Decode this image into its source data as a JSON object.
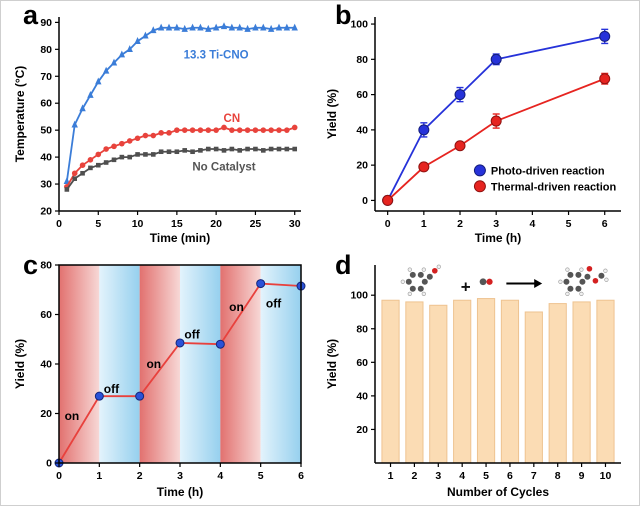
{
  "figure": {
    "background": "#ffffff"
  },
  "panels": {
    "a": {
      "label": "a"
    },
    "b": {
      "label": "b"
    },
    "c": {
      "label": "c"
    },
    "d": {
      "label": "d"
    }
  },
  "chart_data": [
    {
      "panel": "a",
      "type": "line",
      "title": "",
      "xlabel": "Time (min)",
      "ylabel": "Temperature (°C)",
      "xlim": [
        0,
        30.8
      ],
      "ylim": [
        20,
        92
      ],
      "xticks": [
        0,
        5,
        10,
        15,
        20,
        25,
        30
      ],
      "yticks": [
        20,
        30,
        40,
        50,
        60,
        70,
        80,
        90
      ],
      "box": false,
      "series": [
        {
          "name": "13.3 Ti-CNO",
          "color": "#3b7dd8",
          "marker": "triangle",
          "marker_size": 3.2,
          "x": [
            1,
            2,
            3,
            4,
            5,
            6,
            7,
            8,
            9,
            10,
            11,
            12,
            13,
            14,
            15,
            16,
            17,
            18,
            19,
            20,
            21,
            22,
            23,
            24,
            25,
            26,
            27,
            28,
            29,
            30
          ],
          "y": [
            31,
            52,
            58,
            63,
            68,
            72,
            75,
            78,
            80,
            83,
            85,
            87,
            88,
            88,
            88,
            87.5,
            88,
            88,
            87.5,
            88,
            88.5,
            88,
            88,
            87.5,
            88,
            88,
            87.5,
            88,
            88,
            88
          ]
        },
        {
          "name": "CN",
          "color": "#e8433c",
          "marker": "circle",
          "marker_size": 2.8,
          "x": [
            1,
            2,
            3,
            4,
            5,
            6,
            7,
            8,
            9,
            10,
            11,
            12,
            13,
            14,
            15,
            16,
            17,
            18,
            19,
            20,
            21,
            22,
            23,
            24,
            25,
            26,
            27,
            28,
            29,
            30
          ],
          "y": [
            29,
            34,
            37,
            39,
            41,
            43,
            44,
            45,
            46,
            47,
            48,
            48,
            49,
            49,
            50,
            50,
            50,
            50,
            50,
            50,
            51,
            50,
            50,
            50,
            50,
            50,
            50,
            50,
            50,
            51
          ]
        },
        {
          "name": "No Catalyst",
          "color": "#4f4f4f",
          "marker": "square",
          "marker_size": 2.8,
          "x": [
            1,
            2,
            3,
            4,
            5,
            6,
            7,
            8,
            9,
            10,
            11,
            12,
            13,
            14,
            15,
            16,
            17,
            18,
            19,
            20,
            21,
            22,
            23,
            24,
            25,
            26,
            27,
            28,
            29,
            30
          ],
          "y": [
            28,
            32,
            34,
            36,
            37,
            38,
            39,
            40,
            40,
            41,
            41,
            41,
            42,
            42,
            42,
            42.5,
            42,
            42.5,
            43,
            43,
            42.5,
            43,
            42.5,
            43,
            43,
            42.5,
            43,
            43,
            43,
            43
          ]
        }
      ],
      "annotations": [
        {
          "text": "13.3 Ti-CNO",
          "x": 20,
          "y": 78,
          "color": "#3b7dd8",
          "size": 11.5
        },
        {
          "text": "CN",
          "x": 22,
          "y": 54.5,
          "color": "#e8433c",
          "size": 11.5
        },
        {
          "text": "No Catalyst",
          "x": 21,
          "y": 36.5,
          "color": "#555555",
          "size": 11.5
        }
      ]
    },
    {
      "panel": "b",
      "type": "line",
      "title": "",
      "xlabel": "Time (h)",
      "ylabel": "Yield (%)",
      "xlim": [
        -0.35,
        6.45
      ],
      "ylim": [
        -6,
        104
      ],
      "xticks": [
        0,
        1,
        2,
        3,
        4,
        5,
        6
      ],
      "yticks": [
        0,
        20,
        40,
        60,
        80,
        100
      ],
      "box": false,
      "series": [
        {
          "name": "Photo-driven reaction",
          "color": "#2632d9",
          "marker": "circle",
          "marker_size": 5,
          "marker_edge": "#141d7a",
          "x": [
            0,
            1,
            2,
            3,
            6
          ],
          "y": [
            0,
            40,
            60,
            80,
            93
          ],
          "err": [
            0,
            4,
            4,
            3,
            4
          ]
        },
        {
          "name": "Thermal-driven reaction",
          "color": "#e62420",
          "marker": "circle",
          "marker_size": 5,
          "marker_edge": "#8f1210",
          "x": [
            0,
            1,
            2,
            3,
            6
          ],
          "y": [
            0,
            19,
            31,
            45,
            69
          ],
          "err": [
            0,
            2,
            2,
            4,
            3
          ]
        }
      ],
      "legend": {
        "x": 2.55,
        "y": 17,
        "dy": 9
      }
    },
    {
      "panel": "c",
      "type": "line",
      "title": "",
      "xlabel": "Time (h)",
      "ylabel": "Yield (%)",
      "xlim": [
        0,
        6
      ],
      "ylim": [
        0,
        80
      ],
      "xticks": [
        0,
        1,
        2,
        3,
        4,
        5,
        6
      ],
      "yticks": [
        0,
        20,
        40,
        60,
        80
      ],
      "box": true,
      "bands": [
        {
          "x0": 0,
          "x1": 1,
          "type": "on"
        },
        {
          "x0": 1,
          "x1": 2,
          "type": "off"
        },
        {
          "x0": 2,
          "x1": 3,
          "type": "on"
        },
        {
          "x0": 3,
          "x1": 4,
          "type": "off"
        },
        {
          "x0": 4,
          "x1": 5,
          "type": "on"
        },
        {
          "x0": 5,
          "x1": 6,
          "type": "off"
        }
      ],
      "series": [
        {
          "name": "Yield",
          "color": "#e8413d",
          "marker": "circle",
          "marker_size": 4,
          "marker_color": "#2a52d8",
          "marker_edge": "#14267a",
          "x": [
            0,
            1,
            2,
            3,
            4,
            5,
            6
          ],
          "y": [
            0,
            27,
            27,
            48.5,
            48,
            72.5,
            71.5
          ]
        }
      ],
      "annotations": [
        {
          "text": "on",
          "x": 0.32,
          "y": 19,
          "color": "#000000",
          "size": 12
        },
        {
          "text": "off",
          "x": 1.3,
          "y": 30,
          "color": "#000000",
          "size": 12
        },
        {
          "text": "on",
          "x": 2.35,
          "y": 40,
          "color": "#000000",
          "size": 12
        },
        {
          "text": "off",
          "x": 3.3,
          "y": 52,
          "color": "#000000",
          "size": 12
        },
        {
          "text": "on",
          "x": 4.4,
          "y": 63,
          "color": "#000000",
          "size": 12
        },
        {
          "text": "off",
          "x": 5.32,
          "y": 64.5,
          "color": "#000000",
          "size": 12
        }
      ]
    },
    {
      "panel": "d",
      "type": "bar",
      "title": "",
      "xlabel": "Number of Cycles",
      "ylabel": "Yield (%)",
      "xlim": [
        0.35,
        10.65
      ],
      "ylim": [
        0,
        118
      ],
      "xticks": [
        1,
        2,
        3,
        4,
        5,
        6,
        7,
        8,
        9,
        10
      ],
      "yticks": [
        20,
        40,
        60,
        80,
        100
      ],
      "box": false,
      "categories": [
        1,
        2,
        3,
        4,
        5,
        6,
        7,
        8,
        9,
        10
      ],
      "values": [
        97,
        96,
        94,
        97,
        98,
        97,
        90,
        95,
        96,
        97
      ],
      "bar_color": "#fbdcb4",
      "bar_edge": "#eec391",
      "annotations": [
        {
          "text": "+",
          "x": 4.15,
          "y": 104,
          "color": "#111111",
          "size": 17
        }
      ],
      "arrows": [
        {
          "x0": 5.85,
          "y0": 107,
          "x1": 7.35,
          "y1": 107
        }
      ],
      "molecules": [
        {
          "kind": "benzyl",
          "x": 2.1,
          "y": 108
        },
        {
          "kind": "co",
          "x": 5.0,
          "y": 108
        },
        {
          "kind": "ester",
          "x": 8.7,
          "y": 108
        }
      ],
      "scheme_colors": {
        "carbon": "#555555",
        "oxygen": "#d42020",
        "hydrogen": "#f0f0f0"
      }
    }
  ]
}
